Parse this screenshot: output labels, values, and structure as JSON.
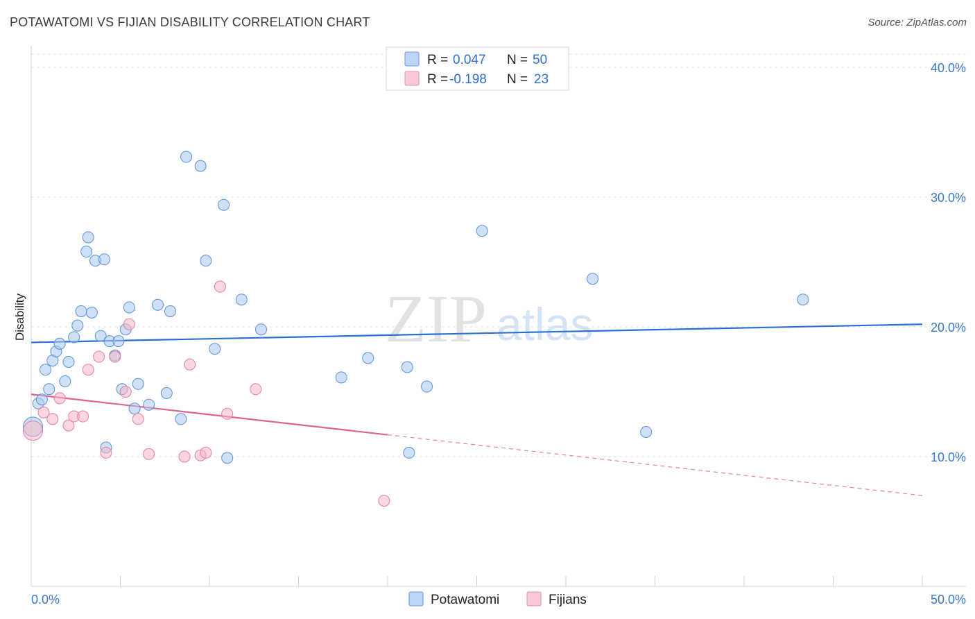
{
  "header": {
    "title": "POTAWATOMI VS FIJIAN DISABILITY CORRELATION CHART",
    "source": "Source: ZipAtlas.com"
  },
  "watermark": {
    "zip": "ZIP",
    "atlas": "atlas"
  },
  "legend_top": {
    "rows": [
      {
        "r_label": "R =",
        "r_value": "0.047",
        "n_label": "N =",
        "n_value": "50",
        "color": "#a9c8f0"
      },
      {
        "r_label": "R =",
        "r_value": "-0.198",
        "n_label": "N =",
        "n_value": "23",
        "color": "#f5b6c8"
      }
    ]
  },
  "legend_bottom": {
    "items": [
      {
        "label": "Potawatomi",
        "color": "#a9c8f0"
      },
      {
        "label": "Fijians",
        "color": "#f5b6c8"
      }
    ]
  },
  "chart_data": {
    "type": "scatter",
    "title": "POTAWATOMI VS FIJIAN DISABILITY CORRELATION CHART",
    "xlabel": "",
    "ylabel": "Disability",
    "xlim": [
      0,
      50
    ],
    "ylim": [
      0,
      40
    ],
    "x_tick_labels": [
      "0.0%",
      "50.0%"
    ],
    "y_ticks": [
      10,
      20,
      30,
      40
    ],
    "y_tick_labels": [
      "10.0%",
      "20.0%",
      "30.0%",
      "40.0%"
    ],
    "grid": true,
    "legend_position": "top-center",
    "series": [
      {
        "name": "Potawatomi",
        "color": "#a9c8f0",
        "stroke": "#5a90d8",
        "line_color": "#2a70d0",
        "trend": {
          "x": [
            0,
            50
          ],
          "y": [
            18.8,
            20.2
          ]
        },
        "points": [
          [
            0.1,
            12.3
          ],
          [
            0.4,
            14.1
          ],
          [
            0.6,
            14.4
          ],
          [
            0.8,
            16.7
          ],
          [
            1.0,
            15.2
          ],
          [
            1.2,
            17.4
          ],
          [
            1.4,
            18.1
          ],
          [
            1.6,
            18.7
          ],
          [
            1.9,
            15.8
          ],
          [
            2.1,
            17.3
          ],
          [
            2.4,
            19.2
          ],
          [
            2.6,
            20.1
          ],
          [
            2.8,
            21.2
          ],
          [
            3.1,
            25.8
          ],
          [
            3.2,
            26.9
          ],
          [
            3.4,
            21.1
          ],
          [
            3.6,
            25.1
          ],
          [
            3.9,
            19.3
          ],
          [
            4.1,
            25.2
          ],
          [
            4.2,
            10.7
          ],
          [
            4.4,
            18.9
          ],
          [
            4.7,
            17.8
          ],
          [
            4.9,
            18.9
          ],
          [
            5.1,
            15.2
          ],
          [
            5.3,
            19.8
          ],
          [
            5.5,
            21.5
          ],
          [
            5.8,
            13.7
          ],
          [
            6.0,
            15.6
          ],
          [
            6.6,
            14.0
          ],
          [
            7.1,
            21.7
          ],
          [
            7.6,
            14.9
          ],
          [
            7.8,
            21.2
          ],
          [
            8.4,
            12.9
          ],
          [
            8.7,
            33.1
          ],
          [
            9.5,
            32.4
          ],
          [
            9.8,
            25.1
          ],
          [
            10.3,
            18.3
          ],
          [
            10.8,
            29.4
          ],
          [
            11.0,
            9.9
          ],
          [
            11.8,
            22.1
          ],
          [
            12.9,
            19.8
          ],
          [
            17.4,
            16.1
          ],
          [
            18.9,
            17.6
          ],
          [
            21.1,
            16.9
          ],
          [
            21.2,
            10.3
          ],
          [
            22.2,
            15.4
          ],
          [
            25.3,
            27.4
          ],
          [
            31.5,
            23.7
          ],
          [
            34.5,
            11.9
          ],
          [
            43.3,
            22.1
          ]
        ]
      },
      {
        "name": "Fijians",
        "color": "#f5b6c8",
        "stroke": "#e07fa0",
        "line_color": "#e0628e",
        "trend": {
          "x": [
            0,
            50
          ],
          "y": [
            14.8,
            7.0
          ],
          "solid_until_x": 20
        },
        "points": [
          [
            0.1,
            12.0
          ],
          [
            0.7,
            13.4
          ],
          [
            1.2,
            12.9
          ],
          [
            1.6,
            14.5
          ],
          [
            2.1,
            12.4
          ],
          [
            2.4,
            13.1
          ],
          [
            2.9,
            13.1
          ],
          [
            3.2,
            16.7
          ],
          [
            3.8,
            17.7
          ],
          [
            4.2,
            10.3
          ],
          [
            4.7,
            17.7
          ],
          [
            5.3,
            15.0
          ],
          [
            5.5,
            20.2
          ],
          [
            6.0,
            12.9
          ],
          [
            6.6,
            10.2
          ],
          [
            8.6,
            10.0
          ],
          [
            8.9,
            17.1
          ],
          [
            9.5,
            10.1
          ],
          [
            9.8,
            10.3
          ],
          [
            10.6,
            23.1
          ],
          [
            11.0,
            13.3
          ],
          [
            12.6,
            15.2
          ],
          [
            19.8,
            6.6
          ]
        ]
      }
    ]
  }
}
